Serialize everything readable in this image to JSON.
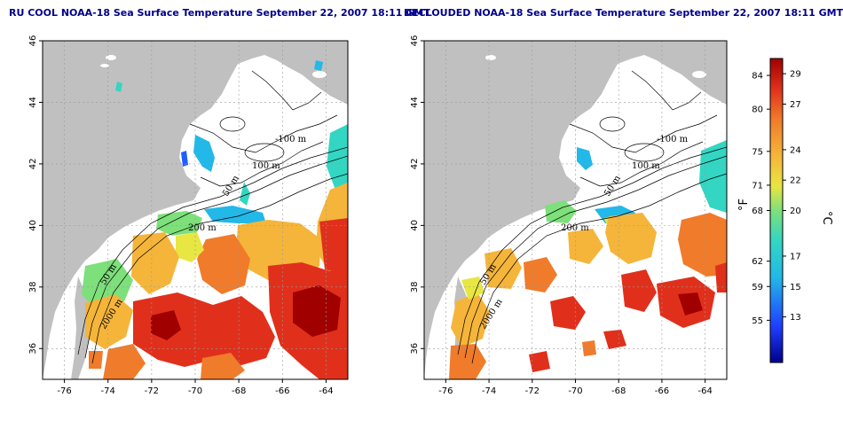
{
  "maps": [
    {
      "title": "RU COOL NOAA-18 Sea Surface Temperature September 22, 2007 18:11 GMT",
      "contour_labels": [
        "-100 m",
        "100 m",
        "50 m",
        "200 m",
        "50 m",
        "2000 m"
      ]
    },
    {
      "title": "DECLOUDED NOAA-18 Sea Surface Temperature September 22, 2007 18:11 GMT",
      "contour_labels": [
        "-100 m",
        "100 m",
        "50 m",
        "200 m",
        "50 m",
        "2000 m"
      ]
    }
  ],
  "axes": {
    "lon_ticks": [
      "-76",
      "-74",
      "-72",
      "-70",
      "-68",
      "-66",
      "-64"
    ],
    "lat_ticks": [
      "36",
      "38",
      "40",
      "42",
      "44",
      "46"
    ],
    "lon_range": [
      -77,
      -63
    ],
    "lat_range": [
      35,
      46
    ]
  },
  "colorbar": {
    "fahrenheit_ticks": [
      "84",
      "80",
      "75",
      "71",
      "68",
      "62",
      "59",
      "55"
    ],
    "celsius_ticks": [
      "29",
      "27",
      "24",
      "22",
      "20",
      "17",
      "15",
      "13"
    ],
    "fahrenheit_label": "°F",
    "celsius_label": "°C",
    "colors": [
      "#00008b",
      "#1f5fff",
      "#22b8e8",
      "#33d6c2",
      "#7de07a",
      "#e8e642",
      "#f5b53a",
      "#f07b2a",
      "#e0301c",
      "#a00000"
    ]
  },
  "colors": {
    "land": "#c0c0c0",
    "sea_cloud": "#ffffff",
    "frame": "#000000"
  }
}
